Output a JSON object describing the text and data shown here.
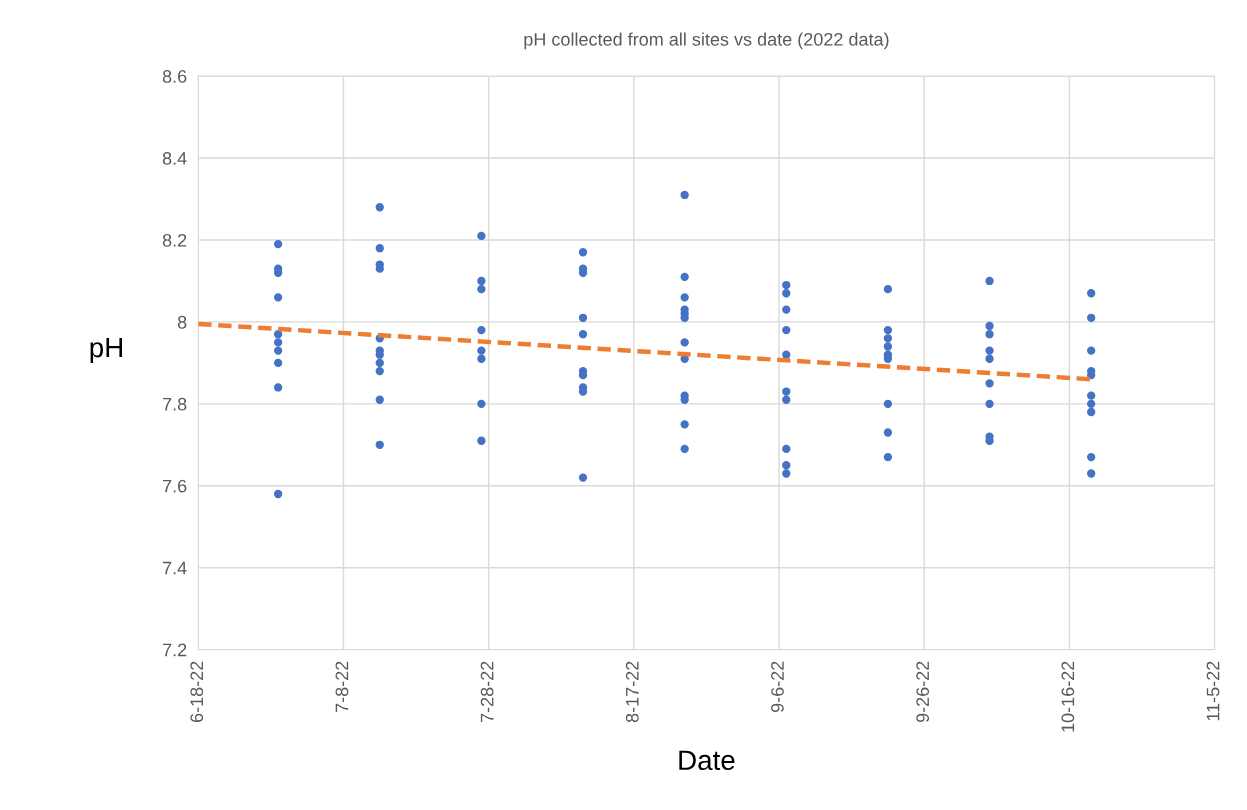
{
  "chart_data": {
    "type": "scatter",
    "title": "pH collected from all sites vs date (2022 data)",
    "xlabel": "Date",
    "ylabel": "pH",
    "xlim": [
      "2022-06-18",
      "2022-11-05"
    ],
    "xticks": [
      {
        "value": "2022-06-18",
        "label": "6-18-22"
      },
      {
        "value": "2022-07-08",
        "label": "7-8-22"
      },
      {
        "value": "2022-07-28",
        "label": "7-28-22"
      },
      {
        "value": "2022-08-17",
        "label": "8-17-22"
      },
      {
        "value": "2022-09-06",
        "label": "9-6-22"
      },
      {
        "value": "2022-09-26",
        "label": "9-26-22"
      },
      {
        "value": "2022-10-16",
        "label": "10-16-22"
      },
      {
        "value": "2022-11-05",
        "label": "11-5-22"
      }
    ],
    "ylim": [
      7.2,
      8.6
    ],
    "yticks": [
      7.2,
      7.4,
      7.6,
      7.8,
      8,
      8.2,
      8.4,
      8.6
    ],
    "grid": true,
    "marker": "circle",
    "series": [
      {
        "color": "#4472c4",
        "x": [
          "2022-06-29",
          "2022-06-29",
          "2022-06-29",
          "2022-06-29",
          "2022-06-29",
          "2022-06-29",
          "2022-06-29",
          "2022-06-29",
          "2022-06-29",
          "2022-06-29",
          "2022-07-13",
          "2022-07-13",
          "2022-07-13",
          "2022-07-13",
          "2022-07-13",
          "2022-07-13",
          "2022-07-13",
          "2022-07-13",
          "2022-07-13",
          "2022-07-13",
          "2022-07-13",
          "2022-07-27",
          "2022-07-27",
          "2022-07-27",
          "2022-07-27",
          "2022-07-27",
          "2022-07-27",
          "2022-07-27",
          "2022-07-27",
          "2022-08-10",
          "2022-08-10",
          "2022-08-10",
          "2022-08-10",
          "2022-08-10",
          "2022-08-10",
          "2022-08-10",
          "2022-08-10",
          "2022-08-10",
          "2022-08-10",
          "2022-08-24",
          "2022-08-24",
          "2022-08-24",
          "2022-08-24",
          "2022-08-24",
          "2022-08-24",
          "2022-08-24",
          "2022-08-24",
          "2022-08-24",
          "2022-08-24",
          "2022-08-24",
          "2022-08-24",
          "2022-09-07",
          "2022-09-07",
          "2022-09-07",
          "2022-09-07",
          "2022-09-07",
          "2022-09-07",
          "2022-09-07",
          "2022-09-07",
          "2022-09-07",
          "2022-09-07",
          "2022-09-21",
          "2022-09-21",
          "2022-09-21",
          "2022-09-21",
          "2022-09-21",
          "2022-09-21",
          "2022-09-21",
          "2022-09-21",
          "2022-09-21",
          "2022-10-05",
          "2022-10-05",
          "2022-10-05",
          "2022-10-05",
          "2022-10-05",
          "2022-10-05",
          "2022-10-05",
          "2022-10-05",
          "2022-10-05",
          "2022-10-19",
          "2022-10-19",
          "2022-10-19",
          "2022-10-19",
          "2022-10-19",
          "2022-10-19",
          "2022-10-19",
          "2022-10-19",
          "2022-10-19",
          "2022-10-19"
        ],
        "values": [
          8.19,
          8.13,
          8.12,
          8.06,
          7.97,
          7.95,
          7.93,
          7.9,
          7.84,
          7.58,
          8.28,
          8.18,
          8.14,
          8.13,
          7.96,
          7.93,
          7.92,
          7.9,
          7.88,
          7.81,
          7.7,
          8.21,
          8.1,
          8.08,
          7.98,
          7.93,
          7.91,
          7.8,
          7.71,
          8.17,
          8.13,
          8.12,
          8.01,
          7.97,
          7.88,
          7.87,
          7.84,
          7.83,
          7.62,
          8.31,
          8.11,
          8.06,
          8.03,
          8.02,
          8.01,
          7.95,
          7.91,
          7.82,
          7.81,
          7.75,
          7.69,
          8.09,
          8.07,
          8.03,
          7.98,
          7.92,
          7.83,
          7.81,
          7.69,
          7.65,
          7.63,
          8.08,
          7.98,
          7.96,
          7.94,
          7.92,
          7.91,
          7.8,
          7.73,
          7.67,
          8.1,
          7.99,
          7.97,
          7.93,
          7.91,
          7.85,
          7.8,
          7.72,
          7.71,
          8.07,
          8.01,
          7.93,
          7.88,
          7.87,
          7.82,
          7.8,
          7.78,
          7.67,
          7.63
        ]
      },
      {
        "type": "line",
        "color": "#ed7d31",
        "line_style": "dashed",
        "marker": "none",
        "x": [
          "2022-06-18",
          "2022-10-19"
        ],
        "values": [
          7.995,
          7.86
        ]
      }
    ]
  }
}
